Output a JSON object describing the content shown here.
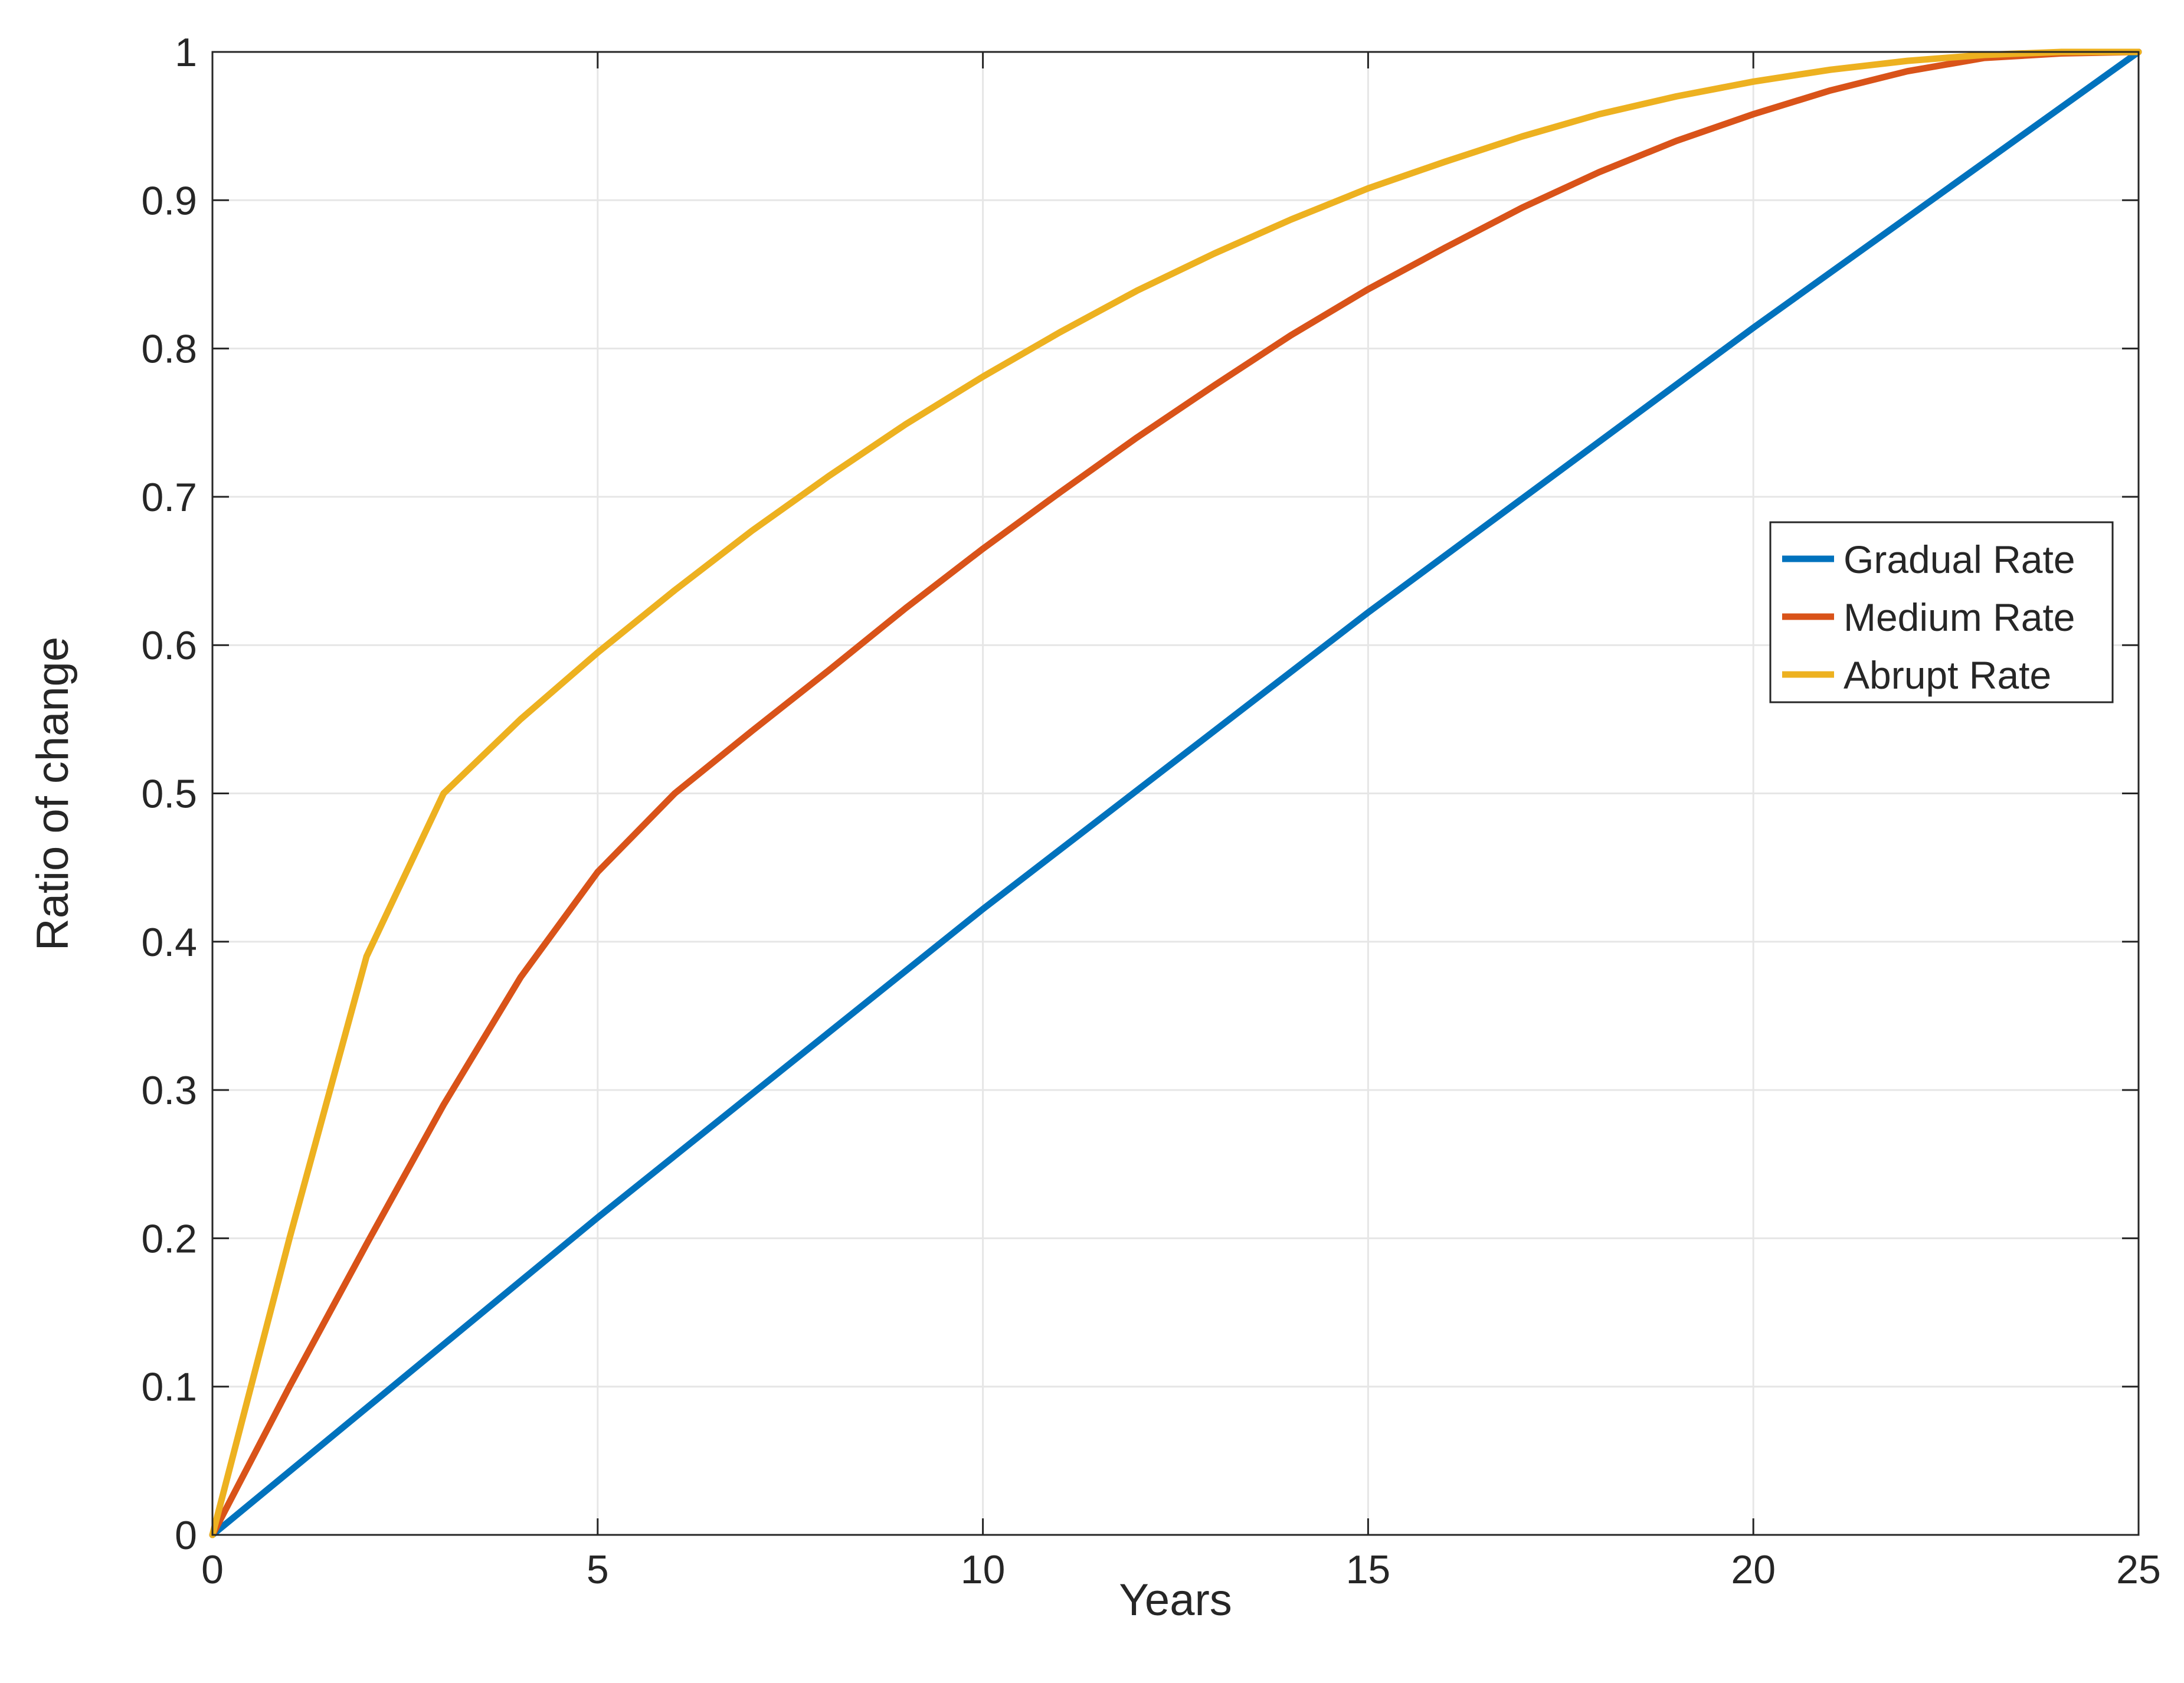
{
  "chart_data": {
    "type": "line",
    "title": "",
    "xlabel": "Years",
    "ylabel": "Ratio of change",
    "xlim": [
      0,
      25
    ],
    "ylim": [
      0,
      1
    ],
    "xticks": [
      0,
      5,
      10,
      15,
      20,
      25
    ],
    "yticks": [
      0,
      0.1,
      0.2,
      0.3,
      0.4,
      0.5,
      0.6,
      0.7,
      0.8,
      0.9,
      1
    ],
    "xtick_labels": [
      "0",
      "5",
      "10",
      "15",
      "20",
      "25"
    ],
    "ytick_labels": [
      "0",
      "0.1",
      "0.2",
      "0.3",
      "0.4",
      "0.5",
      "0.6",
      "0.7",
      "0.8",
      "0.9",
      "1"
    ],
    "grid": true,
    "legend_position": "right",
    "series": [
      {
        "name": "Gradual Rate",
        "color": "#0072BD",
        "x": [
          0,
          5,
          10,
          15,
          20,
          25
        ],
        "y": [
          0,
          0.214,
          0.422,
          0.622,
          0.814,
          1.0
        ]
      },
      {
        "name": "Medium Rate",
        "color": "#D95319",
        "x": [
          0,
          1,
          2,
          3,
          4,
          5,
          6,
          7,
          8,
          9,
          10,
          11,
          12,
          13,
          14,
          15,
          16,
          17,
          18,
          19,
          20,
          21,
          22,
          23,
          24,
          25
        ],
        "y": [
          0,
          0.1,
          0.196,
          0.29,
          0.376,
          0.447,
          0.5,
          0.542,
          0.583,
          0.625,
          0.665,
          0.703,
          0.74,
          0.775,
          0.809,
          0.84,
          0.868,
          0.895,
          0.919,
          0.94,
          0.958,
          0.974,
          0.987,
          0.996,
          0.999,
          1.0
        ]
      },
      {
        "name": "Abrupt Rate",
        "color": "#EDB120",
        "x": [
          0,
          1,
          2,
          3,
          4,
          5,
          6,
          7,
          8,
          9,
          10,
          11,
          12,
          13,
          14,
          15,
          16,
          17,
          18,
          19,
          20,
          21,
          22,
          23,
          24,
          25
        ],
        "y": [
          0,
          0.2,
          0.39,
          0.5,
          0.55,
          0.595,
          0.637,
          0.677,
          0.714,
          0.749,
          0.781,
          0.811,
          0.839,
          0.864,
          0.887,
          0.908,
          0.926,
          0.943,
          0.958,
          0.97,
          0.98,
          0.988,
          0.994,
          0.998,
          1.0,
          1.0
        ]
      }
    ]
  }
}
